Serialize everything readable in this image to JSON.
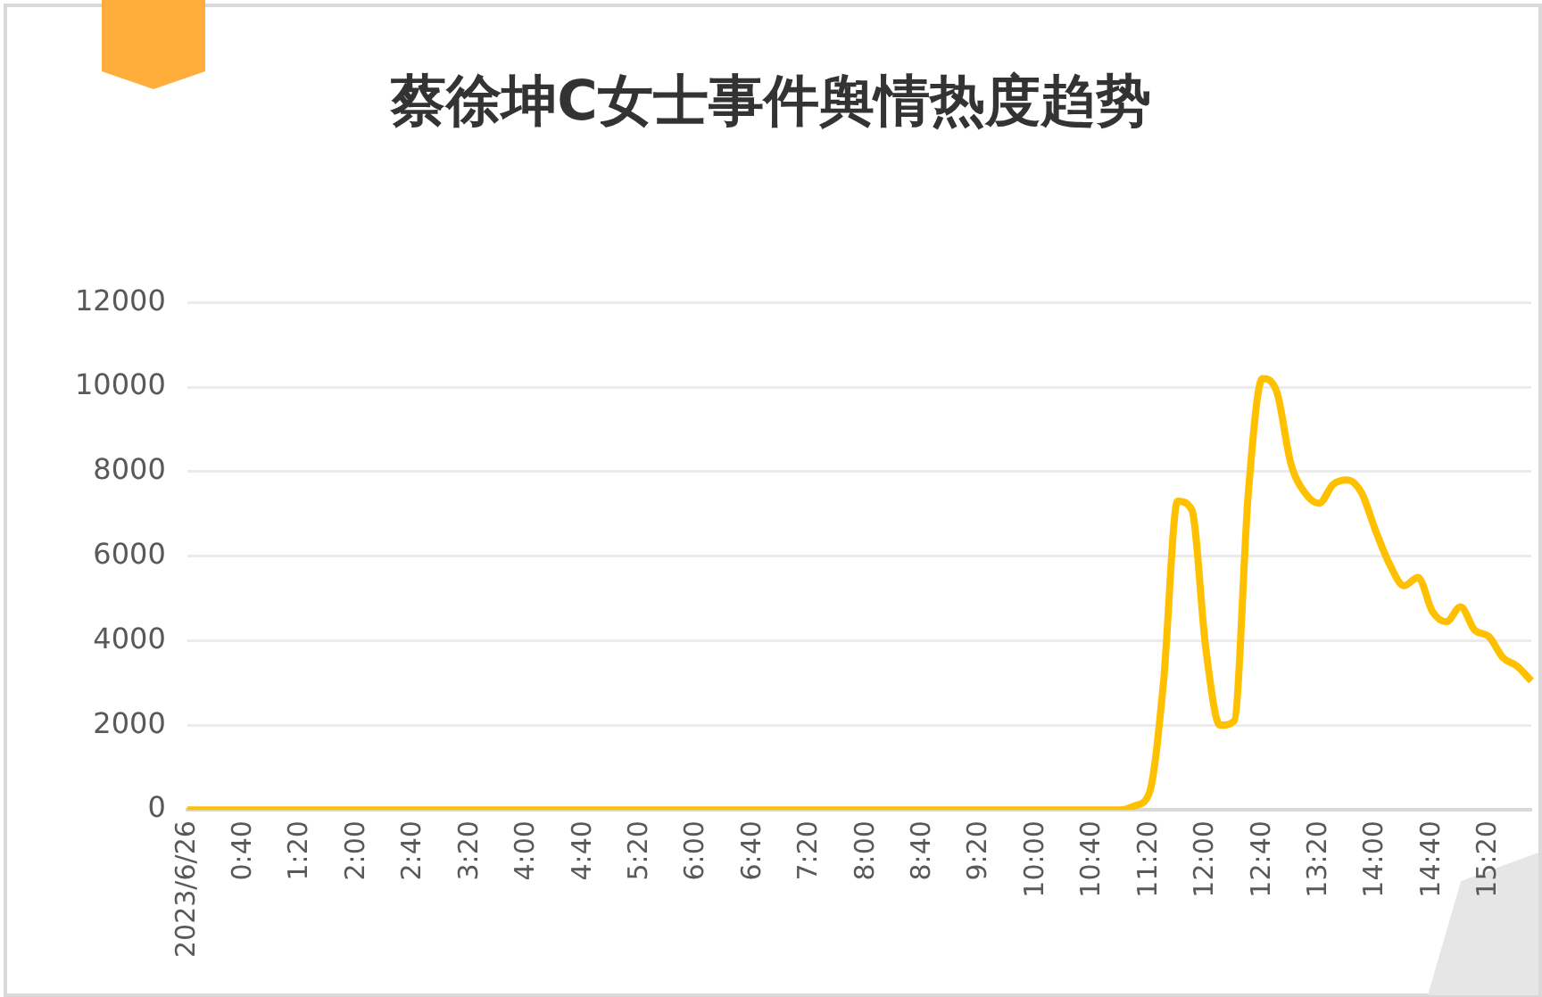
{
  "chart_data": {
    "type": "line",
    "title": "蔡徐坤C女士事件舆情热度趋势",
    "categories": [
      "2023/6/26",
      null,
      null,
      null,
      "0:40",
      null,
      null,
      null,
      "1:20",
      null,
      null,
      null,
      "2:00",
      null,
      null,
      null,
      "2:40",
      null,
      null,
      null,
      "3:20",
      null,
      null,
      null,
      "4:00",
      null,
      null,
      null,
      "4:40",
      null,
      null,
      null,
      "5:20",
      null,
      null,
      null,
      "6:00",
      null,
      null,
      null,
      "6:40",
      null,
      null,
      null,
      "7:20",
      null,
      null,
      null,
      "8:00",
      null,
      null,
      null,
      "8:40",
      null,
      null,
      null,
      "9:20",
      null,
      null,
      null,
      "10:00",
      null,
      null,
      null,
      "10:40",
      null,
      null,
      null,
      "11:20",
      null,
      null,
      null,
      "12:00",
      null,
      null,
      null,
      "12:40",
      null,
      null,
      null,
      "13:20",
      null,
      null,
      null,
      "14:00",
      null,
      null,
      null,
      "14:40",
      null,
      null,
      null,
      "15:20",
      null,
      null,
      null
    ],
    "series": [
      {
        "color": "#ffc000",
        "values": [
          0,
          0,
          0,
          0,
          0,
          0,
          0,
          0,
          0,
          0,
          0,
          0,
          0,
          0,
          0,
          0,
          0,
          0,
          0,
          0,
          0,
          0,
          0,
          0,
          0,
          0,
          0,
          0,
          0,
          0,
          0,
          0,
          0,
          0,
          0,
          0,
          0,
          0,
          0,
          0,
          0,
          0,
          0,
          0,
          0,
          0,
          0,
          0,
          0,
          0,
          0,
          0,
          0,
          0,
          0,
          0,
          0,
          0,
          0,
          0,
          0,
          0,
          0,
          0,
          0,
          0,
          0,
          100,
          400,
          3000,
          7300,
          7100,
          3800,
          2000,
          2100,
          7500,
          10200,
          9900,
          8200,
          7500,
          7250,
          7700,
          7800,
          7500,
          6600,
          5800,
          5300,
          5500,
          4700,
          4450,
          4800,
          4250,
          4100,
          3600,
          3400,
          3050
        ]
      }
    ],
    "ylim": [
      0,
      12000
    ],
    "yticks": [
      0,
      2000,
      4000,
      6000,
      8000,
      10000,
      12000
    ],
    "grid": "y",
    "legend": false,
    "marker": "none",
    "line_style": "solid"
  }
}
